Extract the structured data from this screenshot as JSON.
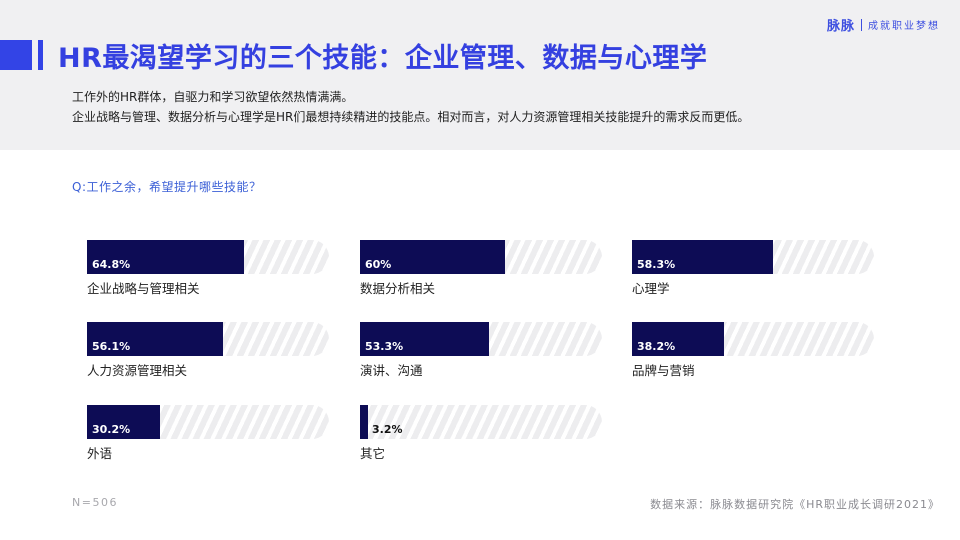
{
  "brand": {
    "logo": "脉脉",
    "slogan": "成就职业梦想",
    "color": "#3d4fe0"
  },
  "header": {
    "title": "HR最渴望学习的三个技能：企业管理、数据与心理学",
    "subtitle_lines": [
      "工作外的HR群体，自驱力和学习欲望依然热情满满。",
      "企业战略与管理、数据分析与心理学是HR们最想持续精进的技能点。相对而言，对人力资源管理相关技能提升的需求反而更低。"
    ]
  },
  "question": "Q:工作之余，希望提升哪些技能？",
  "chart_data": {
    "type": "bar",
    "orientation": "horizontal",
    "unit": "%",
    "xlim": [
      0,
      100
    ],
    "categories": [
      "企业战略与管理相关",
      "数据分析相关",
      "心理学",
      "人力资源管理相关",
      "演讲、沟通",
      "品牌与营销",
      "外语",
      "其它"
    ],
    "values": [
      64.8,
      60,
      58.3,
      56.1,
      53.3,
      38.2,
      30.2,
      3.2
    ],
    "value_labels": [
      "64.8%",
      "60%",
      "58.3%",
      "56.1%",
      "53.3%",
      "38.2%",
      "30.2%",
      "3.2%"
    ],
    "bar_color": "#0d0c55",
    "grid": false,
    "legend": "none"
  },
  "footer": {
    "sample": "N=506",
    "source": "数据来源：脉脉数据研究院《HR职业成长调研2021》"
  }
}
